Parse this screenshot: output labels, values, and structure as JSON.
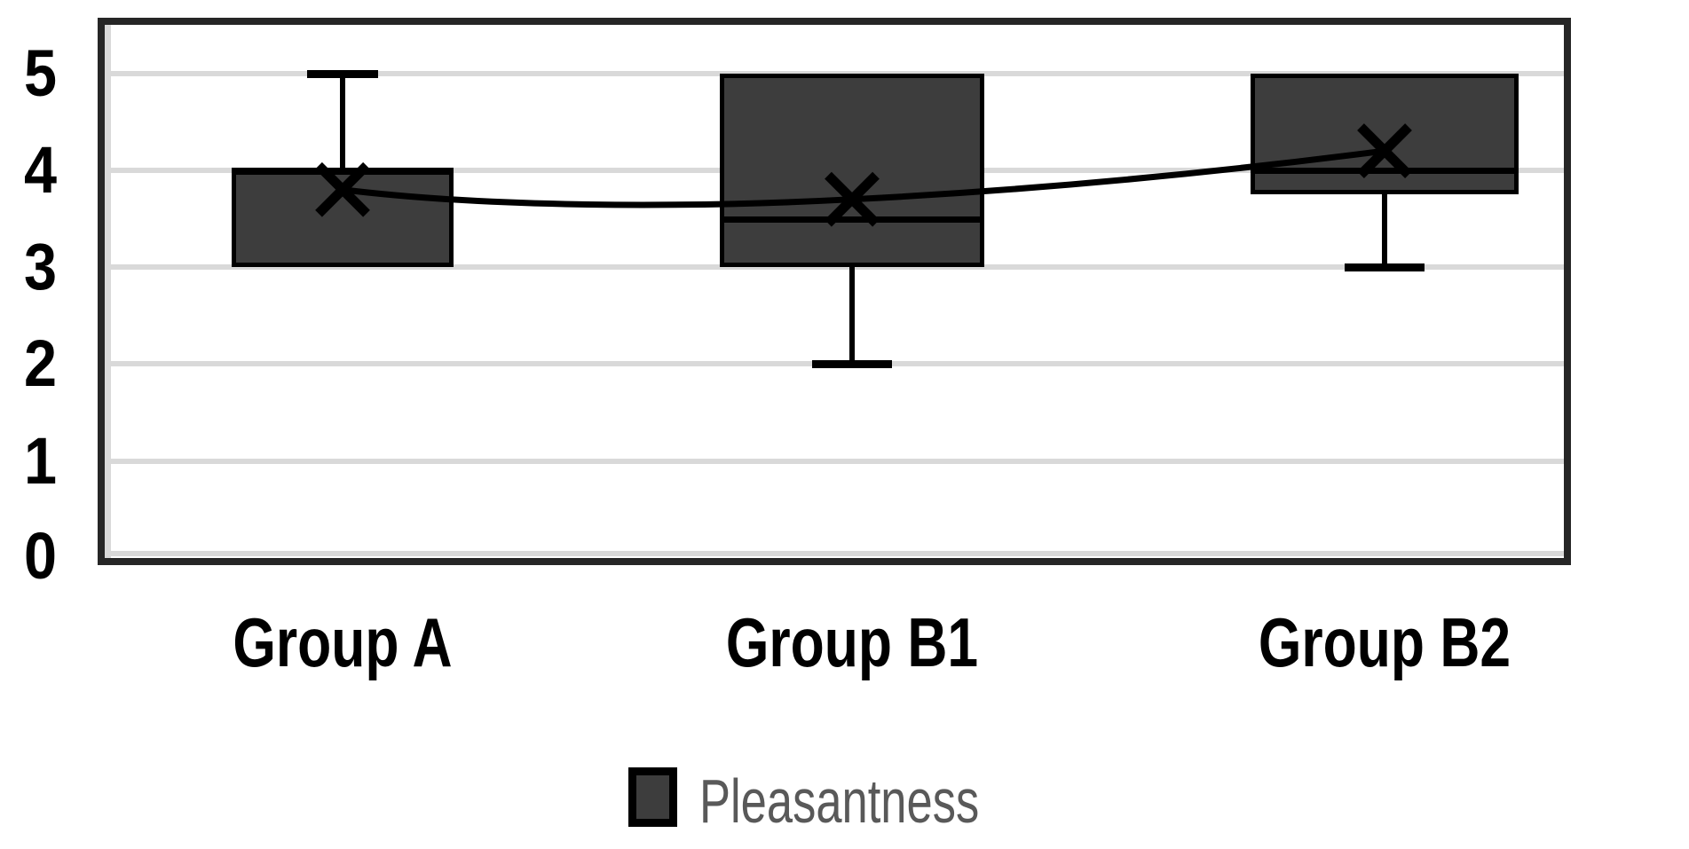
{
  "chart_data": {
    "type": "boxplot",
    "title": "",
    "categories": [
      "Group A",
      "Group B1",
      "Group B2"
    ],
    "series": [
      {
        "name": "Pleasantness",
        "boxes": [
          {
            "category": "Group A",
            "min": 3,
            "q1": 3,
            "median": 4,
            "q3": 4,
            "max": 5,
            "mean": 3.8
          },
          {
            "category": "Group B1",
            "min": 2,
            "q1": 3,
            "median": 3.5,
            "q3": 5,
            "max": 5,
            "mean": 3.7
          },
          {
            "category": "Group B2",
            "min": 3,
            "q1": 3.75,
            "median": 4,
            "q3": 5,
            "max": 5,
            "mean": 4.2
          }
        ]
      }
    ],
    "y_axis": {
      "min": 0,
      "max": 5.5,
      "tick_values": [
        0,
        1,
        2,
        3,
        4,
        5
      ],
      "tick_labels": [
        "0",
        "1",
        "2",
        "3",
        "4",
        "5"
      ]
    },
    "x_axis": {
      "labels": [
        "Group A",
        "Group B1",
        "Group B2"
      ]
    },
    "legend": {
      "position": "bottom",
      "entries": [
        {
          "label": "Pleasantness",
          "swatch_color": "#3d3d3d"
        }
      ]
    },
    "mean_line": true,
    "mean_marker": "x",
    "grid": "horizontal"
  },
  "colors": {
    "background": "#ffffff",
    "box_fill": "#3d3d3d",
    "line_black": "#000000",
    "gridline": "#d9d9d9",
    "plot_border": "#262626",
    "legend_text": "#595959",
    "axis_text": "#000000"
  }
}
